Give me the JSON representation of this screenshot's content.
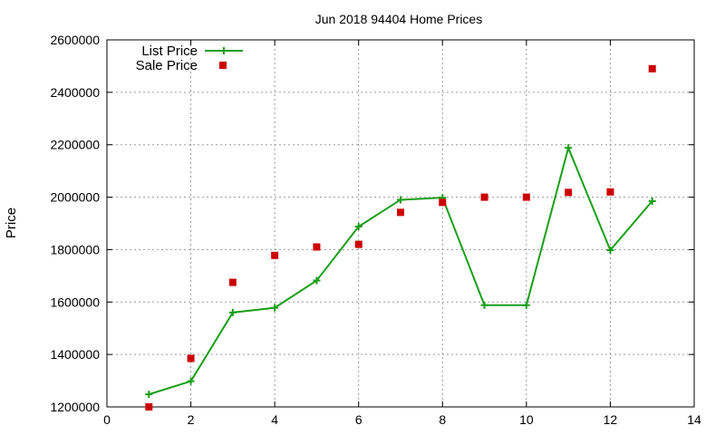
{
  "chart_data": {
    "type": "line",
    "title": "Jun 2018 94404 Home Prices",
    "xlabel": "",
    "ylabel": "Price",
    "xlim": [
      0,
      14
    ],
    "ylim": [
      1200000,
      2600000
    ],
    "xticks": [
      0,
      2,
      4,
      6,
      8,
      10,
      12,
      14
    ],
    "yticks": [
      1200000,
      1400000,
      1600000,
      1800000,
      2000000,
      2200000,
      2400000,
      2600000
    ],
    "xtick_labels": [
      "0",
      "2",
      "4",
      "6",
      "8",
      "10",
      "12",
      "14"
    ],
    "ytick_labels": [
      "1200000",
      "1400000",
      "1600000",
      "1800000",
      "2000000",
      "2200000",
      "2400000",
      "2600000"
    ],
    "grid": true,
    "legend_position": "top-left",
    "series": [
      {
        "name": "List Price",
        "style": "line-with-plus-markers",
        "color": "#1a9e1a",
        "x": [
          1,
          2,
          3,
          4,
          5,
          6,
          7,
          8,
          9,
          10,
          11,
          12,
          13
        ],
        "y": [
          1248000,
          1298000,
          1560000,
          1578000,
          1682000,
          1888000,
          1990000,
          1998000,
          1588000,
          1588000,
          2188000,
          1798000,
          1985000
        ]
      },
      {
        "name": "Sale Price",
        "style": "square-markers",
        "color": "#cc0000",
        "x": [
          1,
          2,
          3,
          4,
          5,
          6,
          7,
          8,
          9,
          10,
          11,
          12,
          13
        ],
        "y": [
          1200000,
          1385000,
          1675000,
          1778000,
          1810000,
          1820000,
          1942000,
          1980000,
          2000000,
          2000000,
          2018000,
          2020000,
          2490000
        ]
      }
    ]
  }
}
